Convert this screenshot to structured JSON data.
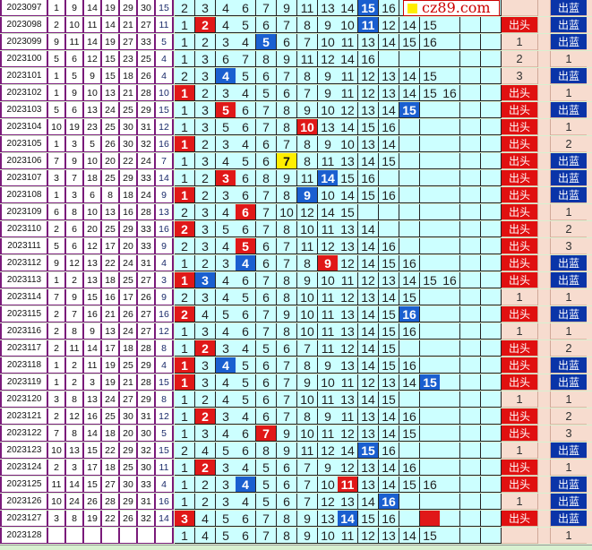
{
  "logo": {
    "text": "cz89.com"
  },
  "labels": {
    "tou": "出头",
    "lan": "出蓝"
  },
  "colors": {
    "red": "#e01818",
    "blue": "#1a5fd0",
    "yellow": "#ffee00",
    "tou": "#e01010",
    "lan": "#0a34a8",
    "mid_bg": "#ccffff"
  },
  "rows": [
    {
      "period": "2023097",
      "nums": [
        "1",
        "9",
        "14",
        "19",
        "29",
        "30",
        "15"
      ],
      "cells": [
        "2",
        "3",
        "4",
        "6",
        "7",
        "9",
        "11",
        "13",
        "14",
        {
          "v": "15",
          "hl": "blue"
        },
        "16"
      ],
      "tou": "",
      "lan": "出蓝"
    },
    {
      "period": "2023098",
      "nums": [
        "2",
        "10",
        "11",
        "14",
        "21",
        "27",
        "11"
      ],
      "cells": [
        "1",
        {
          "v": "2",
          "hl": "red"
        },
        "4",
        "5",
        "6",
        "7",
        "8",
        "9",
        "10",
        {
          "v": "11",
          "hl": "blue"
        },
        "12",
        "14",
        "15"
      ],
      "tou": "出头",
      "lan": "出蓝"
    },
    {
      "period": "2023099",
      "nums": [
        "9",
        "11",
        "14",
        "19",
        "27",
        "33",
        "5"
      ],
      "cells": [
        "1",
        "2",
        "3",
        "4",
        {
          "v": "5",
          "hl": "blue"
        },
        "6",
        "7",
        "10",
        "11",
        "13",
        "14",
        "15",
        "16"
      ],
      "tou": "1",
      "lan": "出蓝"
    },
    {
      "period": "2023100",
      "nums": [
        "5",
        "6",
        "12",
        "15",
        "23",
        "25",
        "4"
      ],
      "cells": [
        "1",
        "3",
        "6",
        "7",
        "8",
        "9",
        "11",
        "12",
        "14",
        "16"
      ],
      "tou": "2",
      "lan": "1"
    },
    {
      "period": "2023101",
      "nums": [
        "1",
        "5",
        "9",
        "15",
        "18",
        "26",
        "4"
      ],
      "cells": [
        "2",
        "3",
        {
          "v": "4",
          "hl": "blue"
        },
        "5",
        "6",
        "7",
        "8",
        "9",
        "11",
        "12",
        "13",
        "14",
        "15"
      ],
      "tou": "3",
      "lan": "出蓝"
    },
    {
      "period": "2023102",
      "nums": [
        "1",
        "9",
        "10",
        "13",
        "21",
        "28",
        "10"
      ],
      "cells": [
        {
          "v": "1",
          "hl": "red"
        },
        "2",
        "3",
        "4",
        "5",
        "6",
        "7",
        "9",
        "11",
        "12",
        "13",
        "14",
        "15",
        "16"
      ],
      "tou": "出头",
      "lan": "1"
    },
    {
      "period": "2023103",
      "nums": [
        "5",
        "6",
        "13",
        "24",
        "25",
        "29",
        "15"
      ],
      "cells": [
        "1",
        "3",
        {
          "v": "5",
          "hl": "red"
        },
        "6",
        "7",
        "8",
        "9",
        "10",
        "12",
        "13",
        "14",
        {
          "v": "15",
          "hl": "blue"
        }
      ],
      "tou": "出头",
      "lan": "出蓝"
    },
    {
      "period": "2023104",
      "nums": [
        "10",
        "19",
        "23",
        "25",
        "30",
        "31",
        "12"
      ],
      "cells": [
        "1",
        "3",
        "5",
        "6",
        "7",
        "8",
        {
          "v": "10",
          "hl": "red"
        },
        "13",
        "14",
        "15",
        "16"
      ],
      "tou": "出头",
      "lan": "1"
    },
    {
      "period": "2023105",
      "nums": [
        "1",
        "3",
        "5",
        "26",
        "30",
        "32",
        "16"
      ],
      "cells": [
        {
          "v": "1",
          "hl": "red"
        },
        "2",
        "3",
        "4",
        "6",
        "7",
        "8",
        "9",
        "10",
        "13",
        "14"
      ],
      "tou": "出头",
      "lan": "2"
    },
    {
      "period": "2023106",
      "nums": [
        "7",
        "9",
        "10",
        "20",
        "22",
        "24",
        "7"
      ],
      "cells": [
        "1",
        "3",
        "4",
        "5",
        "6",
        {
          "v": "7",
          "hl": "yellow"
        },
        "8",
        "11",
        "13",
        "14",
        "15"
      ],
      "tou": "出头",
      "lan": "出蓝"
    },
    {
      "period": "2023107",
      "nums": [
        "3",
        "7",
        "18",
        "25",
        "29",
        "33",
        "14"
      ],
      "cells": [
        "1",
        "2",
        {
          "v": "3",
          "hl": "red"
        },
        "6",
        "8",
        "9",
        "11",
        {
          "v": "14",
          "hl": "blue"
        },
        "15",
        "16"
      ],
      "tou": "出头",
      "lan": "出蓝"
    },
    {
      "period": "2023108",
      "nums": [
        "1",
        "3",
        "6",
        "8",
        "18",
        "24",
        "9"
      ],
      "cells": [
        {
          "v": "1",
          "hl": "red"
        },
        "2",
        "3",
        "6",
        "7",
        "8",
        {
          "v": "9",
          "hl": "blue"
        },
        "10",
        "14",
        "15",
        "16"
      ],
      "tou": "出头",
      "lan": "出蓝"
    },
    {
      "period": "2023109",
      "nums": [
        "6",
        "8",
        "10",
        "13",
        "16",
        "28",
        "13"
      ],
      "cells": [
        "2",
        "3",
        "4",
        {
          "v": "6",
          "hl": "red"
        },
        "7",
        "10",
        "12",
        "14",
        "15"
      ],
      "tou": "出头",
      "lan": "1"
    },
    {
      "period": "2023110",
      "nums": [
        "2",
        "6",
        "20",
        "25",
        "29",
        "33",
        "16"
      ],
      "cells": [
        {
          "v": "2",
          "hl": "red"
        },
        "3",
        "5",
        "6",
        "7",
        "8",
        "10",
        "11",
        "13",
        "14"
      ],
      "tou": "出头",
      "lan": "2"
    },
    {
      "period": "2023111",
      "nums": [
        "5",
        "6",
        "12",
        "17",
        "20",
        "33",
        "9"
      ],
      "cells": [
        "2",
        "3",
        "4",
        {
          "v": "5",
          "hl": "red"
        },
        "6",
        "7",
        "11",
        "12",
        "13",
        "14",
        "16"
      ],
      "tou": "出头",
      "lan": "3"
    },
    {
      "period": "2023112",
      "nums": [
        "9",
        "12",
        "13",
        "22",
        "24",
        "31",
        "4"
      ],
      "cells": [
        "1",
        "2",
        "3",
        {
          "v": "4",
          "hl": "blue"
        },
        "6",
        "7",
        "8",
        {
          "v": "9",
          "hl": "red"
        },
        "12",
        "14",
        "15",
        "16"
      ],
      "tou": "出头",
      "lan": "出蓝"
    },
    {
      "period": "2023113",
      "nums": [
        "1",
        "2",
        "13",
        "18",
        "25",
        "27",
        "3"
      ],
      "cells": [
        {
          "v": "1",
          "hl": "red"
        },
        {
          "v": "3",
          "hl": "blue"
        },
        "4",
        "6",
        "7",
        "8",
        "9",
        "10",
        "11",
        "12",
        "13",
        "14",
        "15",
        "16"
      ],
      "tou": "出头",
      "lan": "出蓝"
    },
    {
      "period": "2023114",
      "nums": [
        "7",
        "9",
        "15",
        "16",
        "17",
        "26",
        "9"
      ],
      "cells": [
        "2",
        "3",
        "4",
        "5",
        "6",
        "8",
        "10",
        "11",
        "12",
        "13",
        "14",
        "15"
      ],
      "tou": "1",
      "lan": "1"
    },
    {
      "period": "2023115",
      "nums": [
        "2",
        "7",
        "16",
        "21",
        "26",
        "27",
        "16"
      ],
      "cells": [
        {
          "v": "2",
          "hl": "red"
        },
        "4",
        "5",
        "6",
        "7",
        "9",
        "10",
        "11",
        "13",
        "14",
        "15",
        {
          "v": "16",
          "hl": "blue"
        }
      ],
      "tou": "出头",
      "lan": "出蓝"
    },
    {
      "period": "2023116",
      "nums": [
        "2",
        "8",
        "9",
        "13",
        "24",
        "27",
        "12"
      ],
      "cells": [
        "1",
        "3",
        "4",
        "6",
        "7",
        "8",
        "10",
        "11",
        "13",
        "14",
        "15",
        "16"
      ],
      "tou": "1",
      "lan": "1"
    },
    {
      "period": "2023117",
      "nums": [
        "2",
        "11",
        "14",
        "17",
        "18",
        "28",
        "8"
      ],
      "cells": [
        "1",
        {
          "v": "2",
          "hl": "red"
        },
        "3",
        "4",
        "5",
        "6",
        "7",
        "11",
        "12",
        "14",
        "15"
      ],
      "tou": "出头",
      "lan": "2"
    },
    {
      "period": "2023118",
      "nums": [
        "1",
        "2",
        "11",
        "19",
        "25",
        "29",
        "4"
      ],
      "cells": [
        {
          "v": "1",
          "hl": "red"
        },
        "3",
        {
          "v": "4",
          "hl": "blue"
        },
        "5",
        "6",
        "7",
        "8",
        "9",
        "13",
        "14",
        "15",
        "16"
      ],
      "tou": "出头",
      "lan": "出蓝"
    },
    {
      "period": "2023119",
      "nums": [
        "1",
        "2",
        "3",
        "19",
        "21",
        "28",
        "15"
      ],
      "cells": [
        {
          "v": "1",
          "hl": "red"
        },
        "3",
        "4",
        "5",
        "6",
        "7",
        "9",
        "10",
        "11",
        "12",
        "13",
        "14",
        {
          "v": "15",
          "hl": "blue"
        }
      ],
      "tou": "出头",
      "lan": "出蓝"
    },
    {
      "period": "2023120",
      "nums": [
        "3",
        "8",
        "13",
        "24",
        "27",
        "29",
        "8"
      ],
      "cells": [
        "1",
        "2",
        "4",
        "5",
        "6",
        "7",
        "10",
        "11",
        "13",
        "14",
        "15"
      ],
      "tou": "1",
      "lan": "1"
    },
    {
      "period": "2023121",
      "nums": [
        "2",
        "12",
        "16",
        "25",
        "30",
        "31",
        "12"
      ],
      "cells": [
        "1",
        {
          "v": "2",
          "hl": "red"
        },
        "3",
        "4",
        "6",
        "7",
        "8",
        "9",
        "11",
        "13",
        "14",
        "16"
      ],
      "tou": "出头",
      "lan": "2"
    },
    {
      "period": "2023122",
      "nums": [
        "7",
        "8",
        "14",
        "18",
        "20",
        "30",
        "5"
      ],
      "cells": [
        "1",
        "3",
        "4",
        "6",
        {
          "v": "7",
          "hl": "red"
        },
        "9",
        "10",
        "11",
        "12",
        "13",
        "14",
        "15"
      ],
      "tou": "出头",
      "lan": "3"
    },
    {
      "period": "2023123",
      "nums": [
        "10",
        "13",
        "15",
        "22",
        "29",
        "32",
        "15"
      ],
      "cells": [
        "2",
        "4",
        "5",
        "6",
        "8",
        "9",
        "11",
        "12",
        "14",
        {
          "v": "15",
          "hl": "blue"
        },
        "16"
      ],
      "tou": "1",
      "lan": "出蓝"
    },
    {
      "period": "2023124",
      "nums": [
        "2",
        "3",
        "17",
        "18",
        "25",
        "30",
        "11"
      ],
      "cells": [
        "1",
        {
          "v": "2",
          "hl": "red"
        },
        "3",
        "4",
        "5",
        "6",
        "7",
        "9",
        "12",
        "13",
        "14",
        "16"
      ],
      "tou": "出头",
      "lan": "1"
    },
    {
      "period": "2023125",
      "nums": [
        "11",
        "14",
        "15",
        "27",
        "30",
        "33",
        "4"
      ],
      "cells": [
        "1",
        "2",
        "3",
        {
          "v": "4",
          "hl": "blue"
        },
        "5",
        "6",
        "7",
        "10",
        {
          "v": "11",
          "hl": "red"
        },
        "13",
        "14",
        "15",
        "16"
      ],
      "tou": "出头",
      "lan": "出蓝"
    },
    {
      "period": "2023126",
      "nums": [
        "10",
        "24",
        "26",
        "28",
        "29",
        "31",
        "16"
      ],
      "cells": [
        "1",
        "2",
        "3",
        "4",
        "5",
        "6",
        "7",
        "12",
        "13",
        "14",
        {
          "v": "16",
          "hl": "blue"
        }
      ],
      "tou": "1",
      "lan": "出蓝"
    },
    {
      "period": "2023127",
      "nums": [
        "3",
        "8",
        "19",
        "22",
        "26",
        "32",
        "14"
      ],
      "cells": [
        {
          "v": "3",
          "hl": "red"
        },
        "4",
        "5",
        "6",
        "7",
        "8",
        "9",
        "13",
        {
          "v": "14",
          "hl": "blue"
        },
        "15",
        "16",
        "",
        {
          "v": "",
          "hl": "red"
        }
      ],
      "tou": "出头",
      "lan": "出蓝"
    },
    {
      "period": "2023128",
      "nums": [
        "",
        "",
        "",
        "",
        "",
        "",
        ""
      ],
      "cells": [
        "1",
        "4",
        "5",
        "6",
        "7",
        "8",
        "9",
        "10",
        "11",
        "12",
        "13",
        "14",
        "15"
      ],
      "tou": "",
      "lan": "1"
    }
  ]
}
